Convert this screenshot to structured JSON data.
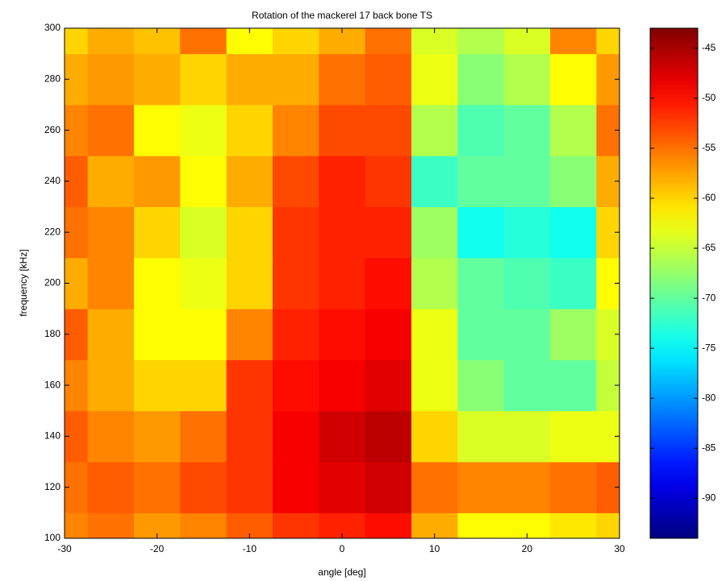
{
  "chart_data": {
    "type": "heatmap",
    "title": "Rotation of the mackerel 17 back bone TS",
    "xlabel": "angle [deg]",
    "ylabel": "frequency [kHz]",
    "x": [
      -30,
      -25,
      -20,
      -15,
      -10,
      -5,
      0,
      5,
      10,
      15,
      20,
      25,
      30
    ],
    "y": [
      100,
      120,
      140,
      160,
      180,
      200,
      220,
      240,
      260,
      280,
      300
    ],
    "z": [
      [
        -56,
        -55,
        -57,
        -56,
        -54,
        -52,
        -51,
        -50,
        -58,
        -62,
        -62,
        -61,
        -60
      ],
      [
        -55,
        -54,
        -55,
        -53,
        -52,
        -49,
        -48,
        -47,
        -55,
        -56,
        -56,
        -55,
        -54
      ],
      [
        -54,
        -56,
        -57,
        -55,
        -52,
        -49,
        -47,
        -46,
        -60,
        -64,
        -64,
        -63,
        -63
      ],
      [
        -56,
        -58,
        -60,
        -60,
        -52,
        -50,
        -49,
        -48,
        -63,
        -68,
        -70,
        -70,
        -65
      ],
      [
        -54,
        -58,
        -62,
        -62,
        -56,
        -51,
        -50,
        -49,
        -63,
        -70,
        -70,
        -67,
        -64
      ],
      [
        -58,
        -56,
        -62,
        -63,
        -60,
        -52,
        -51,
        -50,
        -66,
        -70,
        -71,
        -72,
        -62
      ],
      [
        -55,
        -56,
        -60,
        -64,
        -60,
        -52,
        -51,
        -51,
        -67,
        -74,
        -73,
        -74,
        -60
      ],
      [
        -54,
        -58,
        -57,
        -62,
        -58,
        -53,
        -51,
        -52,
        -72,
        -70,
        -70,
        -68,
        -58
      ],
      [
        -56,
        -55,
        -62,
        -63,
        -60,
        -56,
        -53,
        -53,
        -66,
        -71,
        -70,
        -66,
        -55
      ],
      [
        -58,
        -57,
        -58,
        -60,
        -58,
        -58,
        -55,
        -54,
        -63,
        -68,
        -66,
        -62,
        -57
      ],
      [
        -60,
        -58,
        -59,
        -55,
        -62,
        -60,
        -58,
        -55,
        -64,
        -66,
        -64,
        -56,
        -60
      ]
    ],
    "colormap": "jet",
    "xlim": [
      -30,
      30
    ],
    "xticks": [
      -30,
      -20,
      -10,
      0,
      10,
      20,
      30
    ],
    "ylim": [
      100,
      300
    ],
    "yticks": [
      100,
      120,
      140,
      160,
      180,
      200,
      220,
      240,
      260,
      280,
      300
    ],
    "clim": [
      -94,
      -43
    ],
    "cticks": [
      -45,
      -50,
      -55,
      -60,
      -65,
      -70,
      -75,
      -80,
      -85,
      -90
    ]
  }
}
